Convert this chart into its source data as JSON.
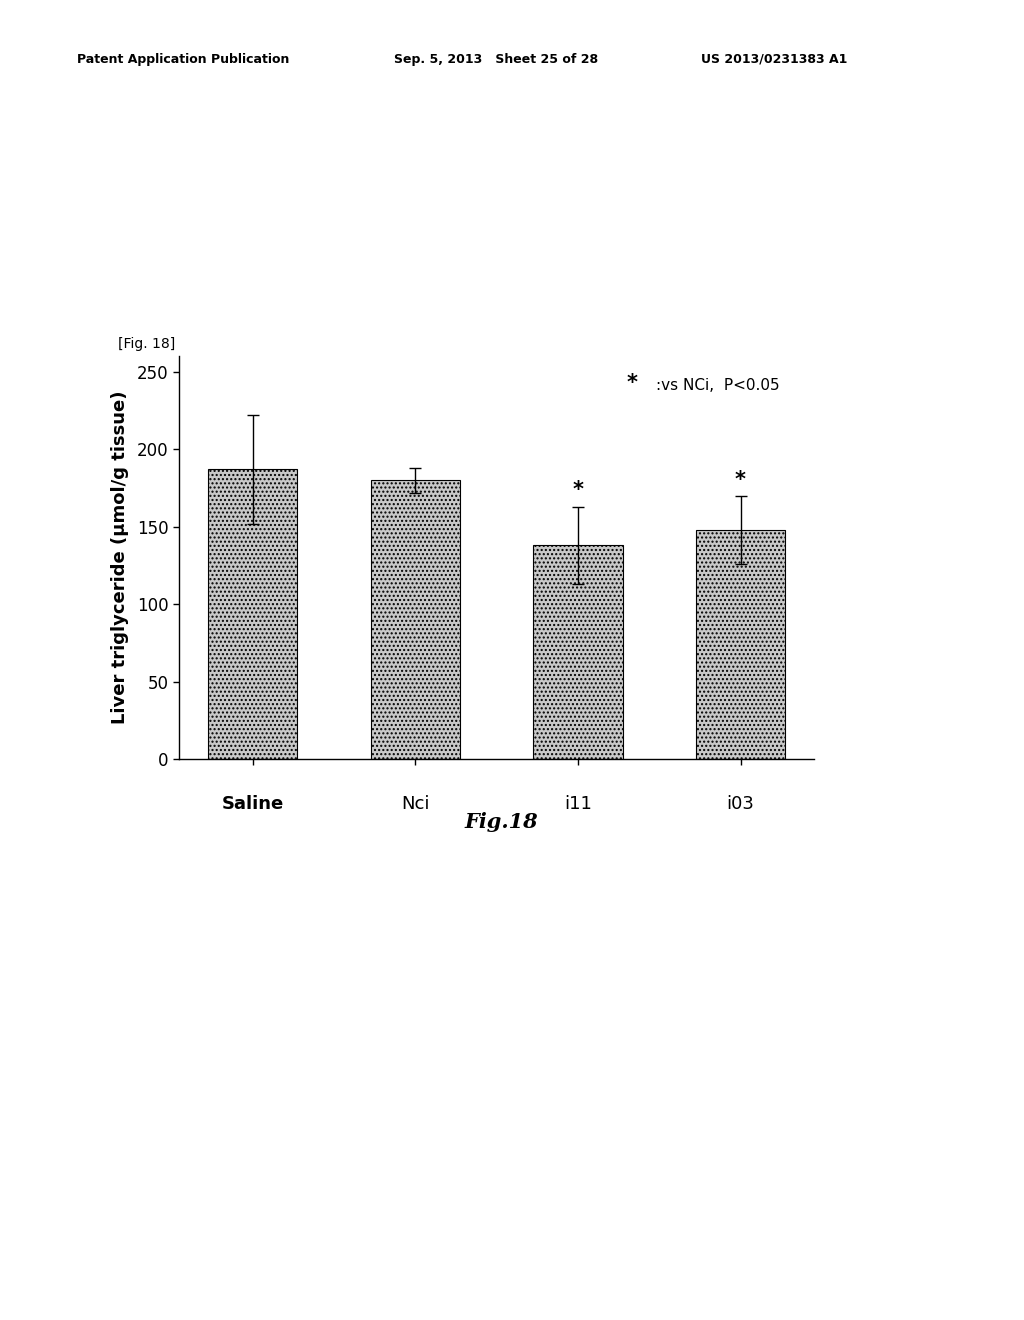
{
  "categories": [
    "Saline",
    "Nci",
    "i11",
    "i03"
  ],
  "values": [
    187,
    180,
    138,
    148
  ],
  "errors_upper": [
    35,
    8,
    25,
    22
  ],
  "errors_lower": [
    35,
    8,
    25,
    22
  ],
  "bar_color": "#c8c8c8",
  "hatch": "....",
  "ylabel": "Liver triglyceride (μmol/g tissue)",
  "ylim": [
    0,
    260
  ],
  "yticks": [
    0,
    50,
    100,
    150,
    200,
    250
  ],
  "fig_label": "[Fig. 18]",
  "caption": "Fig.18",
  "annotation_star": "*",
  "annotation_text": ":vs NCi,  P<0.05",
  "significance_bars": [
    2,
    3
  ],
  "header_left": "Patent Application Publication",
  "header_mid": "Sep. 5, 2013   Sheet 25 of 28",
  "header_right": "US 2013/0231383 A1",
  "category_fontsize": 13,
  "ylabel_fontsize": 13,
  "tick_fontsize": 12
}
